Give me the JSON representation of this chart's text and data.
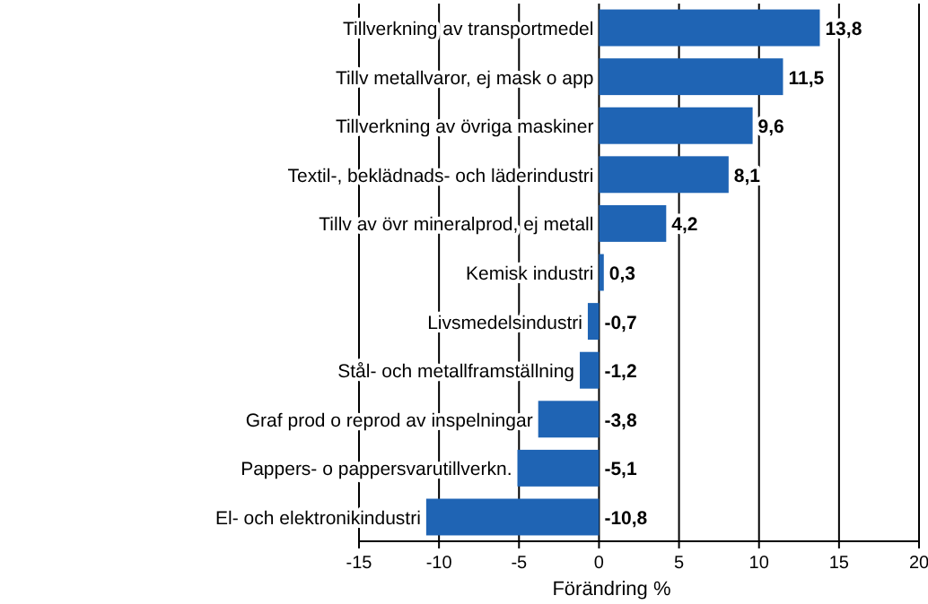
{
  "chart_data": {
    "type": "bar",
    "orientation": "horizontal",
    "xlabel": "Förändring %",
    "categories": [
      "Tillverkning av transportmedel",
      "Tillv metallvaror, ej mask o app",
      "Tillverkning av övriga maskiner",
      "Textil-, beklädnads- och läderindustri",
      "Tillv av övr mineralprod, ej metall",
      "Kemisk industri",
      "Livsmedelsindustri",
      "Stål- och metallframställning",
      "Graf prod o reprod av inspelningar",
      "Pappers- o pappersvarutillverkn.",
      "El- och elektronikindustri"
    ],
    "values": [
      13.8,
      11.5,
      9.6,
      8.1,
      4.2,
      0.3,
      -0.7,
      -1.2,
      -3.8,
      -5.1,
      -10.8
    ],
    "value_labels": [
      "13,8",
      "11,5",
      "9,6",
      "8,1",
      "4,2",
      "0,3",
      "-0,7",
      "-1,2",
      "-3,8",
      "-5,1",
      "-10,8"
    ],
    "color": "#1f64b4",
    "xlim": [
      -15,
      20
    ],
    "xticks": [
      -15,
      -10,
      -5,
      0,
      5,
      10,
      15,
      20
    ],
    "grid": "x"
  }
}
